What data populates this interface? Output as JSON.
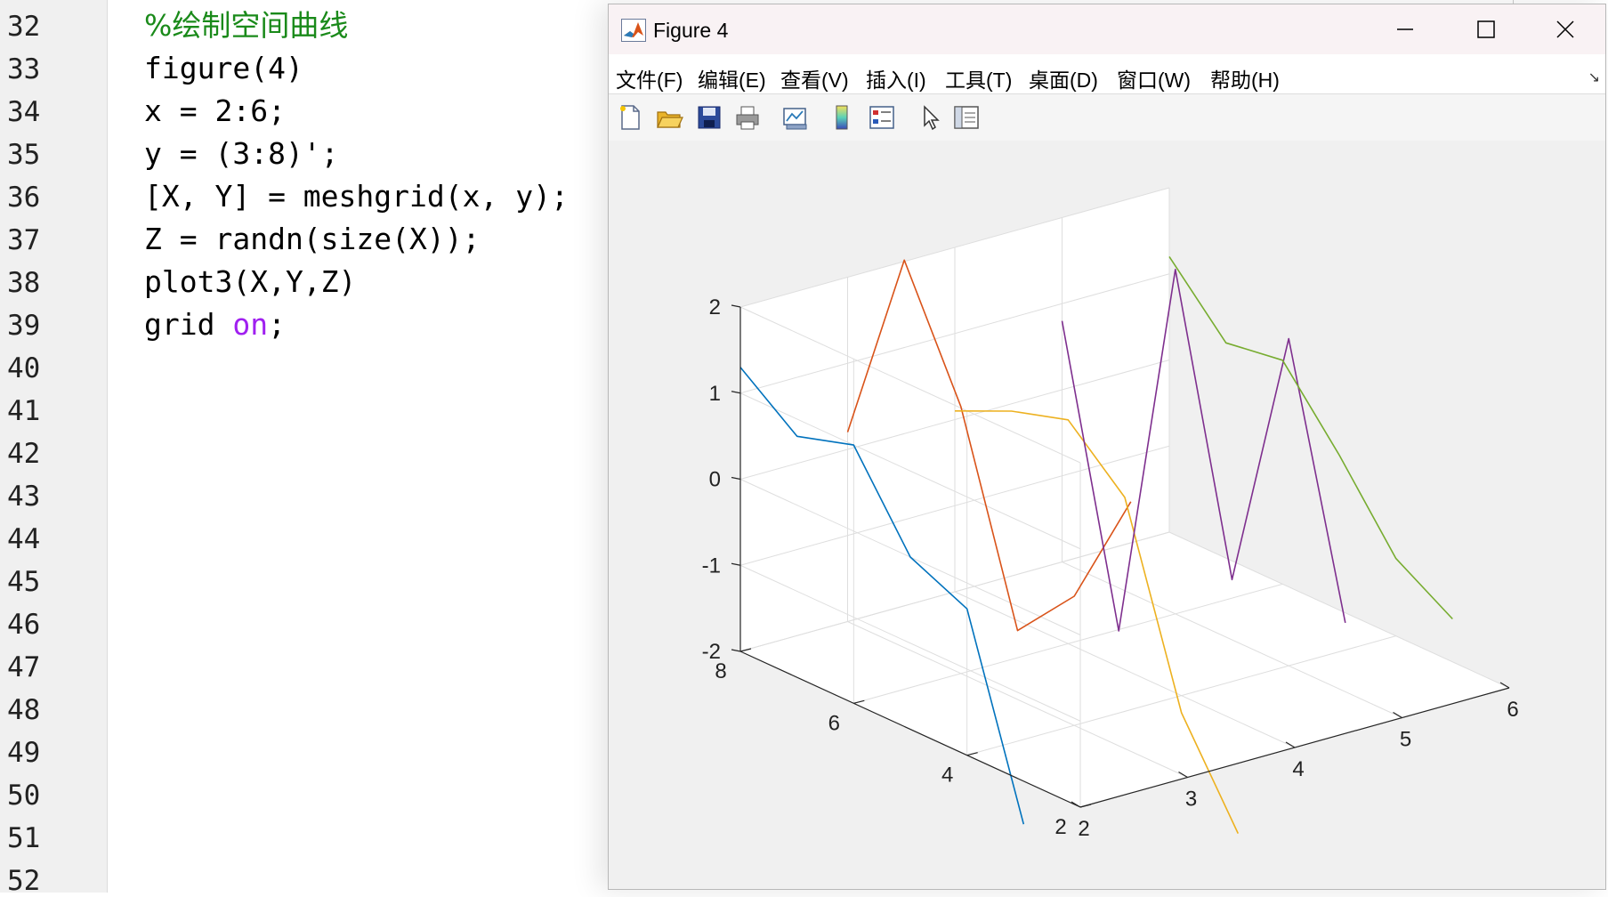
{
  "editor": {
    "line_numbers": [
      "32",
      "33",
      "34",
      "35",
      "36",
      "37",
      "38",
      "39",
      "40",
      "41",
      "42",
      "43",
      "44",
      "45",
      "46",
      "47",
      "48",
      "49",
      "50",
      "51",
      "52"
    ],
    "code": {
      "l32": "%绘制空间曲线",
      "l33": "figure(4)",
      "l34": "x = 2:6;",
      "l35": "y = (3:8)';",
      "l36": "[X, Y] = meshgrid(x, y);",
      "l37": "Z = randn(size(X));",
      "l38": "plot3(X,Y,Z)",
      "l39_pre": "grid ",
      "l39_kw": "on",
      "l39_post": ";"
    },
    "colors": {
      "comment": "#1a8a1a",
      "keyword": "#a020f0"
    }
  },
  "figure_window": {
    "title": "Figure 4",
    "app_icon": "matlab-logo-icon",
    "controls": [
      "minimize-icon",
      "maximize-icon",
      "close-icon"
    ],
    "menus": [
      "文件(F)",
      "编辑(E)",
      "查看(V)",
      "插入(I)",
      "工具(T)",
      "桌面(D)",
      "窗口(W)",
      "帮助(H)"
    ],
    "toolbar_icons": [
      "new-figure-icon",
      "open-file-icon",
      "save-icon",
      "print-icon",
      "link-plot-icon",
      "colorbar-icon",
      "legend-icon",
      "pointer-icon",
      "property-editor-icon"
    ]
  },
  "chart_data": {
    "type": "line",
    "projection": "3d",
    "grid": true,
    "title": "",
    "xlabel": "",
    "ylabel": "",
    "zlabel": "",
    "xlim": [
      2,
      6
    ],
    "ylim": [
      3,
      8
    ],
    "zlim": [
      -2,
      2
    ],
    "x_ticks": [
      "2",
      "3",
      "4",
      "5",
      "6"
    ],
    "y_ticks": [
      "2",
      "4",
      "6",
      "8"
    ],
    "z_ticks": [
      "-2",
      "-1",
      "0",
      "1",
      "2"
    ],
    "y_tick_values": [
      2,
      4,
      6,
      8
    ],
    "y": [
      3,
      4,
      5,
      6,
      7,
      8
    ],
    "series": [
      {
        "x": 2,
        "color": "#0072bd",
        "z": [
          -2.5,
          -0.3,
          0.0,
          1.0,
          0.8,
          1.3
        ]
      },
      {
        "x": 3,
        "color": "#d95319",
        "z": [
          0.9,
          -0.5,
          -1.2,
          1.1,
          2.5,
          0.2
        ]
      },
      {
        "x": 4,
        "color": "#edb120",
        "z": [
          -3.3,
          -2.2,
          0.0,
          0.6,
          0.4,
          0.1
        ]
      },
      {
        "x": 5,
        "color": "#7e2f8e",
        "z": [
          -1.2,
          1.8,
          -1.3,
          2.0,
          -2.5,
          0.8
        ]
      },
      {
        "x": 6,
        "color": "#77ac30",
        "z": [
          -1.5,
          -1.1,
          -0.2,
          0.6,
          0.5,
          1.2
        ]
      }
    ]
  }
}
